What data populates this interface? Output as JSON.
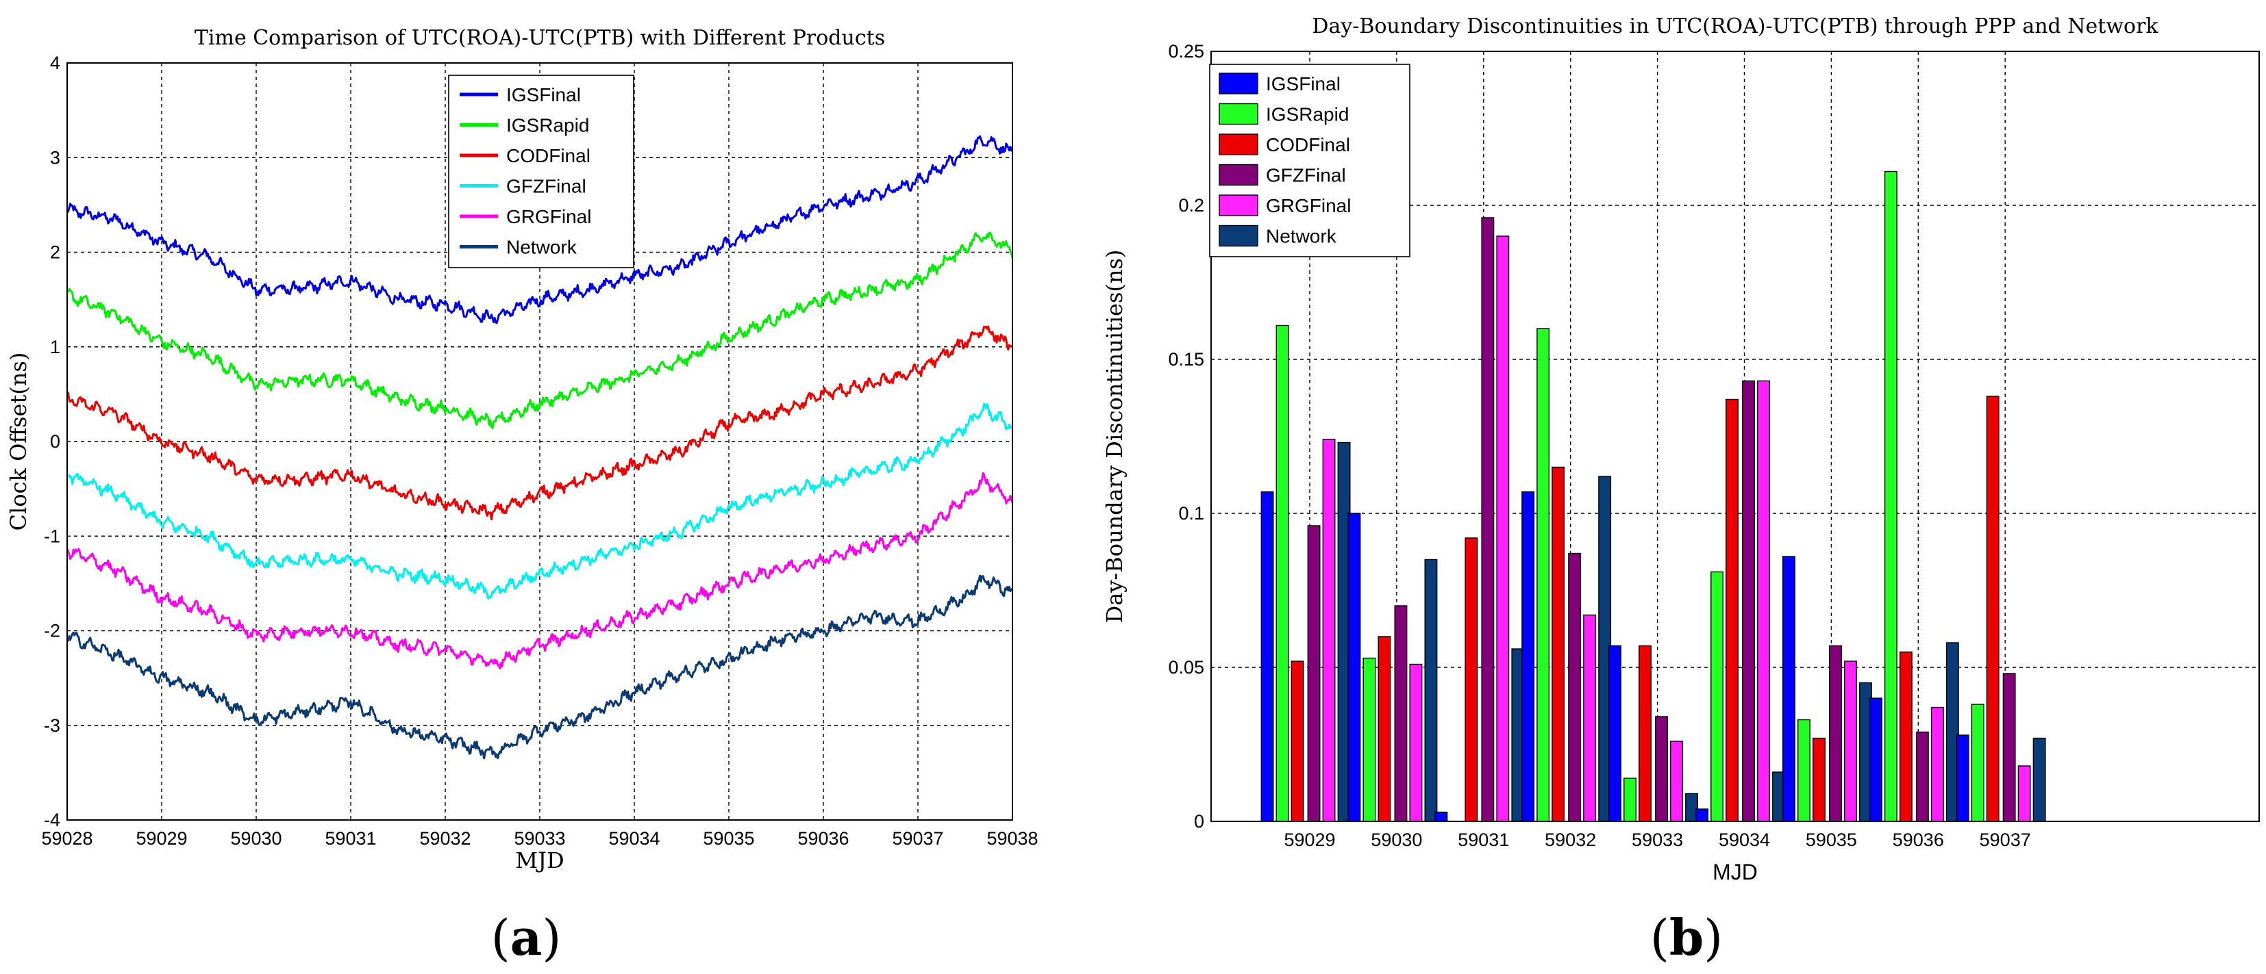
{
  "panel_labels": {
    "a": "a",
    "b": "b"
  },
  "chart_data": [
    {
      "type": "line",
      "title": "Time Comparison of UTC(ROA)-UTC(PTB) with Different Products",
      "xlabel": "MJD",
      "ylabel": "Clock Offset(ns)",
      "xlim": [
        59028,
        59038
      ],
      "ylim": [
        -4,
        4
      ],
      "xticks": [
        59028,
        59029,
        59030,
        59031,
        59032,
        59033,
        59034,
        59035,
        59036,
        59037,
        59038
      ],
      "yticks": [
        -4,
        -3,
        -2,
        -1,
        0,
        1,
        2,
        3,
        4
      ],
      "grid": true,
      "legend_position": "top-right",
      "x": [
        59028,
        59028.5,
        59029,
        59029.5,
        59030,
        59030.5,
        59031,
        59031.5,
        59032,
        59032.5,
        59033,
        59033.5,
        59034,
        59034.5,
        59035,
        59035.5,
        59036,
        59036.5,
        59037,
        59037.5,
        59037.7,
        59038
      ],
      "series": [
        {
          "name": "IGSFinal",
          "color": "#0000e6",
          "values": [
            2.45,
            2.35,
            2.1,
            1.95,
            1.6,
            1.62,
            1.7,
            1.5,
            1.45,
            1.3,
            1.5,
            1.6,
            1.75,
            1.85,
            2.1,
            2.3,
            2.5,
            2.6,
            2.75,
            3.05,
            3.2,
            3.05
          ]
        },
        {
          "name": "IGSRapid",
          "color": "#00ee00",
          "values": [
            1.55,
            1.35,
            1.05,
            0.9,
            0.6,
            0.65,
            0.65,
            0.45,
            0.35,
            0.2,
            0.4,
            0.55,
            0.7,
            0.85,
            1.1,
            1.3,
            1.5,
            1.6,
            1.7,
            2.05,
            2.2,
            2.0
          ]
        },
        {
          "name": "CODFinal",
          "color": "#ee0000",
          "values": [
            0.45,
            0.3,
            0.0,
            -0.15,
            -0.4,
            -0.4,
            -0.35,
            -0.55,
            -0.65,
            -0.75,
            -0.55,
            -0.4,
            -0.25,
            -0.1,
            0.2,
            0.3,
            0.5,
            0.6,
            0.75,
            1.05,
            1.2,
            1.0
          ]
        },
        {
          "name": "GFZFinal",
          "color": "#00f0f0",
          "values": [
            -0.35,
            -0.55,
            -0.85,
            -1.0,
            -1.3,
            -1.25,
            -1.25,
            -1.4,
            -1.45,
            -1.6,
            -1.4,
            -1.25,
            -1.1,
            -0.95,
            -0.7,
            -0.55,
            -0.45,
            -0.3,
            -0.2,
            0.15,
            0.35,
            0.15
          ]
        },
        {
          "name": "GRGFinal",
          "color": "#ff00ee",
          "values": [
            -1.15,
            -1.35,
            -1.65,
            -1.8,
            -2.05,
            -2.0,
            -2.0,
            -2.15,
            -2.2,
            -2.35,
            -2.15,
            -2.0,
            -1.85,
            -1.7,
            -1.5,
            -1.35,
            -1.25,
            -1.1,
            -1.0,
            -0.6,
            -0.4,
            -0.65
          ]
        },
        {
          "name": "Network",
          "color": "#0b3a73",
          "values": [
            -2.05,
            -2.25,
            -2.5,
            -2.65,
            -2.95,
            -2.85,
            -2.75,
            -3.05,
            -3.15,
            -3.3,
            -3.05,
            -2.9,
            -2.65,
            -2.45,
            -2.3,
            -2.1,
            -2.0,
            -1.85,
            -1.9,
            -1.65,
            -1.45,
            -1.6
          ]
        }
      ]
    },
    {
      "type": "bar",
      "title": "Day-Boundary Discontinuities in UTC(ROA)-UTC(PTB) through PPP and Network",
      "xlabel": "MJD",
      "ylabel": "Day-Boundary Discontinuities(ns)",
      "ylim": [
        0,
        0.25
      ],
      "yticks": [
        0,
        0.05,
        0.1,
        0.15,
        0.2,
        0.25
      ],
      "ytick_labels": [
        "0",
        "0.05",
        "0.1",
        "0.15",
        "0.2",
        "0.25"
      ],
      "grid": true,
      "legend_position": "top-left",
      "categories": [
        "59029",
        "59030",
        "59031",
        "59032",
        "59033",
        "59034",
        "59035",
        "59036",
        "59037"
      ],
      "series": [
        {
          "name": "IGSFinal",
          "color": "#0000ff",
          "values": [
            0.107,
            0.1,
            0.003,
            0.107,
            0.057,
            0.004,
            0.086,
            0.04,
            0.028
          ]
        },
        {
          "name": "IGSRapid",
          "color": "#22ff22",
          "values": [
            0.161,
            0.053,
            0.0,
            0.16,
            0.014,
            0.081,
            0.033,
            0.211,
            0.038
          ]
        },
        {
          "name": "CODFinal",
          "color": "#ee0000",
          "values": [
            0.052,
            0.06,
            0.092,
            0.115,
            0.057,
            0.137,
            0.027,
            0.055,
            0.138
          ]
        },
        {
          "name": "GFZFinal",
          "color": "#820078",
          "values": [
            0.096,
            0.07,
            0.196,
            0.087,
            0.034,
            0.143,
            0.057,
            0.029,
            0.048
          ]
        },
        {
          "name": "GRGFinal",
          "color": "#ff22ff",
          "values": [
            0.124,
            0.051,
            0.19,
            0.067,
            0.026,
            0.143,
            0.052,
            0.037,
            0.018
          ]
        },
        {
          "name": "Network",
          "color": "#0a3d78",
          "values": [
            0.123,
            0.085,
            0.056,
            0.112,
            0.009,
            0.016,
            0.045,
            0.058,
            0.027
          ]
        }
      ]
    }
  ]
}
